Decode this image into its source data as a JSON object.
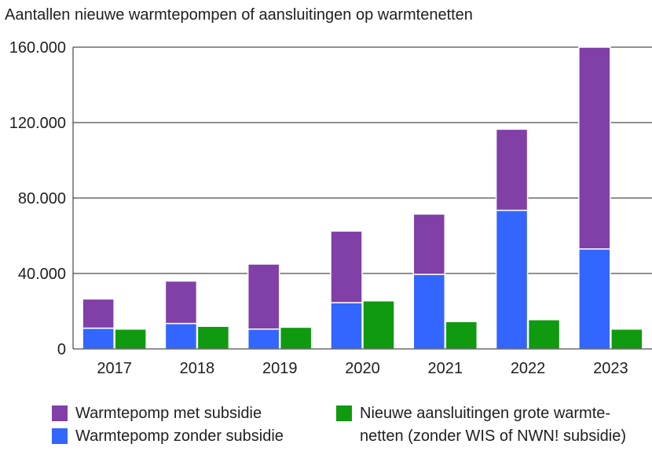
{
  "chart_data": {
    "type": "bar",
    "title": "Aantallen nieuwe warmtepompen of aansluitingen op warmtenetten",
    "xlabel": "",
    "ylabel": "",
    "ylim": [
      0,
      160000
    ],
    "y_ticks": [
      0,
      40000,
      80000,
      120000,
      160000
    ],
    "y_tick_labels": [
      "0",
      "40.000",
      "80.000",
      "120.000",
      "160.000"
    ],
    "categories": [
      "2017",
      "2018",
      "2019",
      "2020",
      "2021",
      "2022",
      "2023"
    ],
    "stacked_groups": [
      [
        "zonder",
        "met"
      ],
      [
        "warmtenet"
      ]
    ],
    "series": [
      {
        "key": "zonder",
        "name": "Warmtepomp zonder subsidie",
        "color": "#3366ff",
        "values": [
          11000,
          13500,
          10500,
          24500,
          39500,
          73500,
          53000
        ]
      },
      {
        "key": "met",
        "name": "Warmtepomp met subsidie",
        "color": "#8040a8",
        "values": [
          15500,
          22500,
          34500,
          38000,
          32000,
          43000,
          107000
        ]
      },
      {
        "key": "warmtenet",
        "name": "Nieuwe aansluitingen grote warmte-\nnetten (zonder WIS of NWN! subsidie)",
        "color": "#0f9a0f",
        "values": [
          10500,
          12000,
          11500,
          25500,
          14500,
          15500,
          10500
        ]
      }
    ],
    "grid": true,
    "legend_position": "bottom"
  },
  "legend": {
    "col1": [
      {
        "label": "Warmtepomp met subsidie",
        "color": "#8040a8"
      },
      {
        "label": "Warmtepomp zonder subsidie",
        "color": "#3366ff"
      }
    ],
    "col2": [
      {
        "label": "Nieuwe aansluitingen grote warmte-\nnetten (zonder WIS of NWN! subsidie)",
        "color": "#0f9a0f"
      }
    ]
  }
}
